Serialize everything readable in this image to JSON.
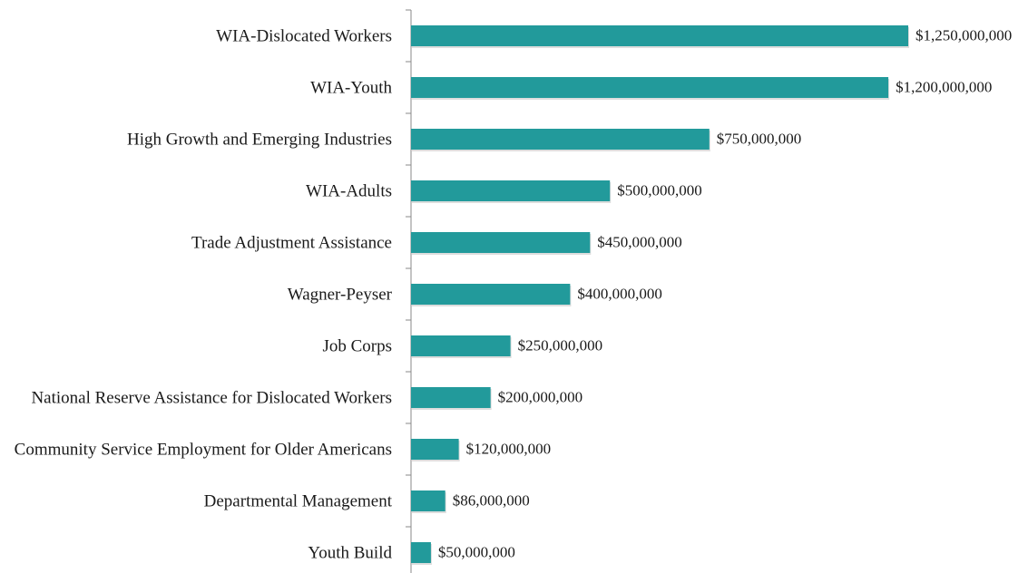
{
  "chart_data": {
    "type": "bar",
    "orientation": "horizontal",
    "categories": [
      "WIA-Dislocated Workers",
      "WIA-Youth",
      "High Growth and Emerging Industries",
      "WIA-Adults",
      "Trade Adjustment Assistance",
      "Wagner-Peyser",
      "Job Corps",
      "National Reserve Assistance for Dislocated Workers",
      "Community Service Employment for Older Americans",
      "Departmental Management",
      "Youth Build"
    ],
    "values": [
      1250000000,
      1200000000,
      750000000,
      500000000,
      450000000,
      400000000,
      250000000,
      200000000,
      120000000,
      86000000,
      50000000
    ],
    "value_labels": [
      "$1,250,000,000",
      "$1,200,000,000",
      "$750,000,000",
      "$500,000,000",
      "$450,000,000",
      "$400,000,000",
      "$250,000,000",
      "$200,000,000",
      "$120,000,000",
      "$86,000,000",
      "$50,000,000"
    ],
    "color": "#229a9b",
    "grid": false
  }
}
